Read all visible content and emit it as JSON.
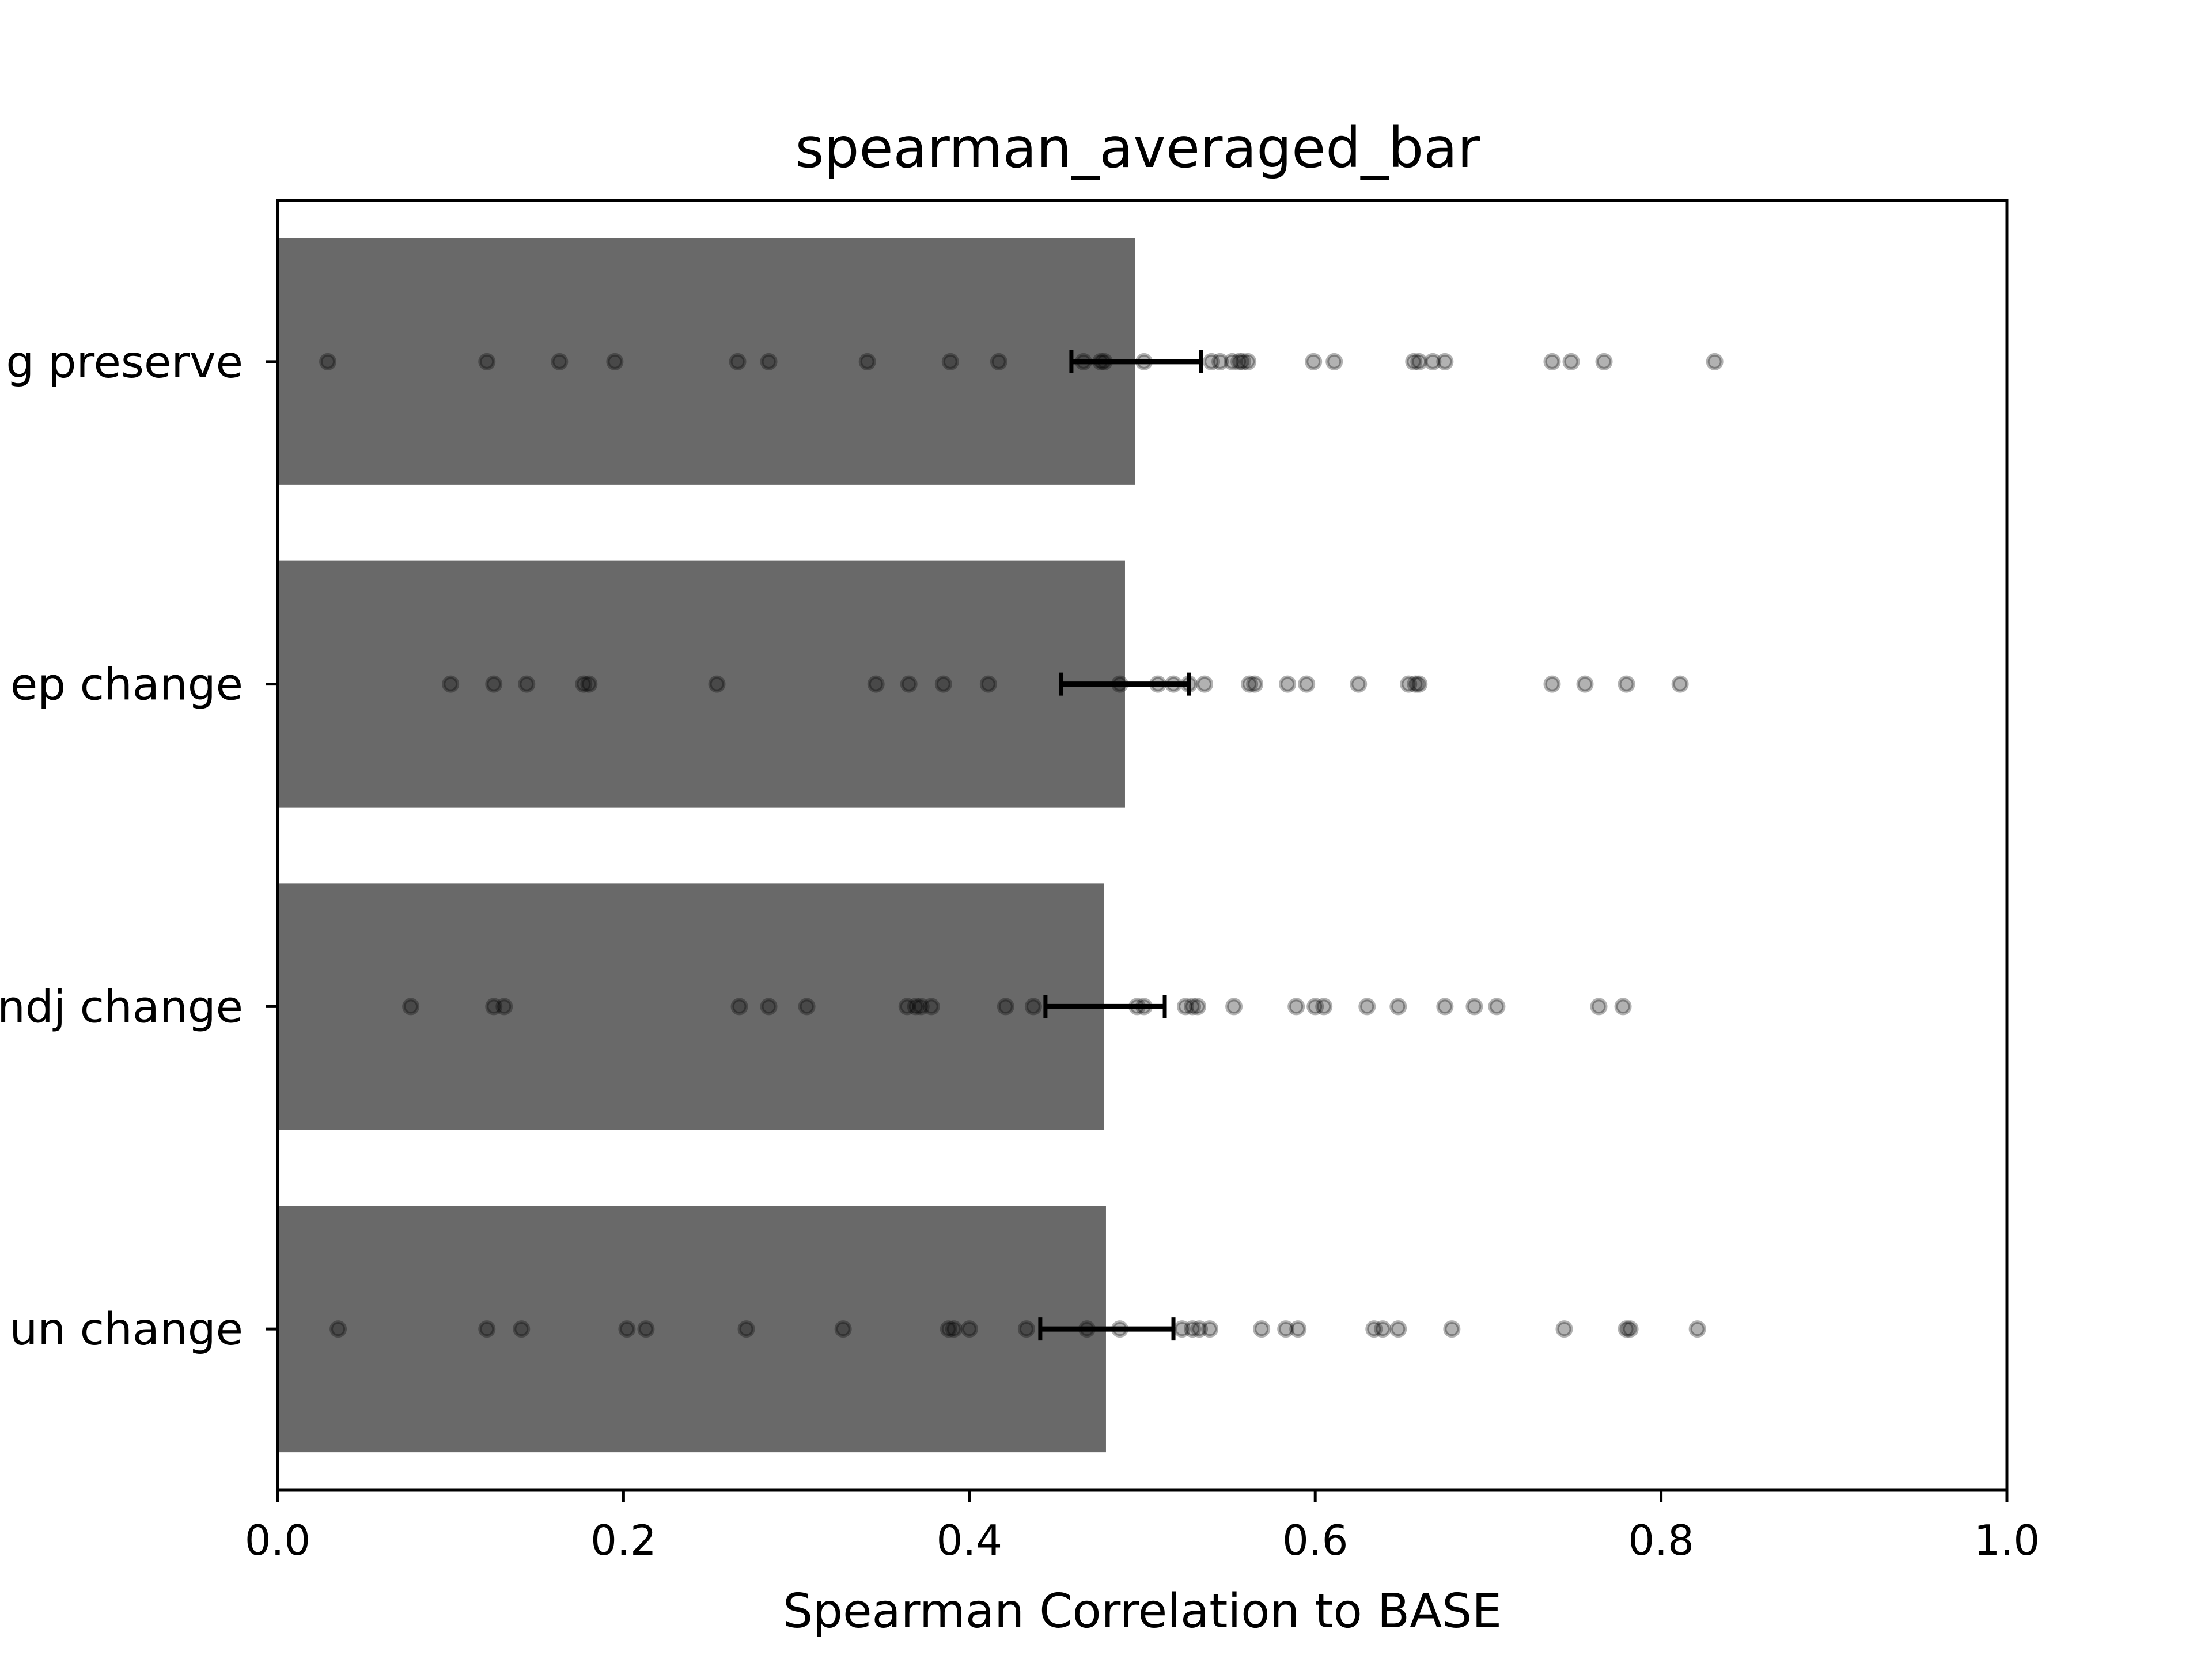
{
  "chart_data": {
    "type": "bar",
    "orientation": "horizontal",
    "title": "spearman_averaged_bar",
    "xlabel": "Spearman Correlation to BASE",
    "ylabel": "",
    "xlim": [
      0,
      1
    ],
    "xticks": [
      "0.0",
      "0.2",
      "0.4",
      "0.6",
      "0.8",
      "1.0"
    ],
    "grid": false,
    "bar_color": "#696969",
    "categories": [
      "g preserve",
      "ep change",
      "ndj change",
      "un change"
    ],
    "values": [
      0.496,
      0.49,
      0.478,
      0.479
    ],
    "error": [
      [
        0.459,
        0.534
      ],
      [
        0.453,
        0.527
      ],
      [
        0.444,
        0.513
      ],
      [
        0.441,
        0.518
      ]
    ],
    "points": [
      [
        0.029,
        0.121,
        0.163,
        0.195,
        0.266,
        0.284,
        0.341,
        0.389,
        0.417,
        0.466,
        0.476,
        0.478,
        0.501,
        0.54,
        0.545,
        0.552,
        0.556,
        0.558,
        0.561,
        0.599,
        0.611,
        0.657,
        0.66,
        0.668,
        0.675,
        0.737,
        0.748,
        0.767,
        0.831
      ],
      [
        0.1,
        0.125,
        0.144,
        0.177,
        0.18,
        0.254,
        0.346,
        0.365,
        0.385,
        0.411,
        0.487,
        0.509,
        0.518,
        0.527,
        0.536,
        0.562,
        0.565,
        0.584,
        0.595,
        0.625,
        0.654,
        0.658,
        0.66,
        0.737,
        0.756,
        0.78,
        0.811
      ],
      [
        0.077,
        0.125,
        0.131,
        0.267,
        0.284,
        0.306,
        0.364,
        0.369,
        0.372,
        0.378,
        0.421,
        0.437,
        0.497,
        0.501,
        0.525,
        0.529,
        0.532,
        0.553,
        0.589,
        0.6,
        0.605,
        0.63,
        0.648,
        0.675,
        0.692,
        0.705,
        0.764,
        0.778
      ],
      [
        0.035,
        0.121,
        0.141,
        0.202,
        0.213,
        0.271,
        0.327,
        0.388,
        0.391,
        0.4,
        0.433,
        0.468,
        0.487,
        0.523,
        0.529,
        0.533,
        0.539,
        0.569,
        0.583,
        0.59,
        0.634,
        0.639,
        0.648,
        0.679,
        0.744,
        0.78,
        0.782,
        0.821
      ]
    ]
  }
}
